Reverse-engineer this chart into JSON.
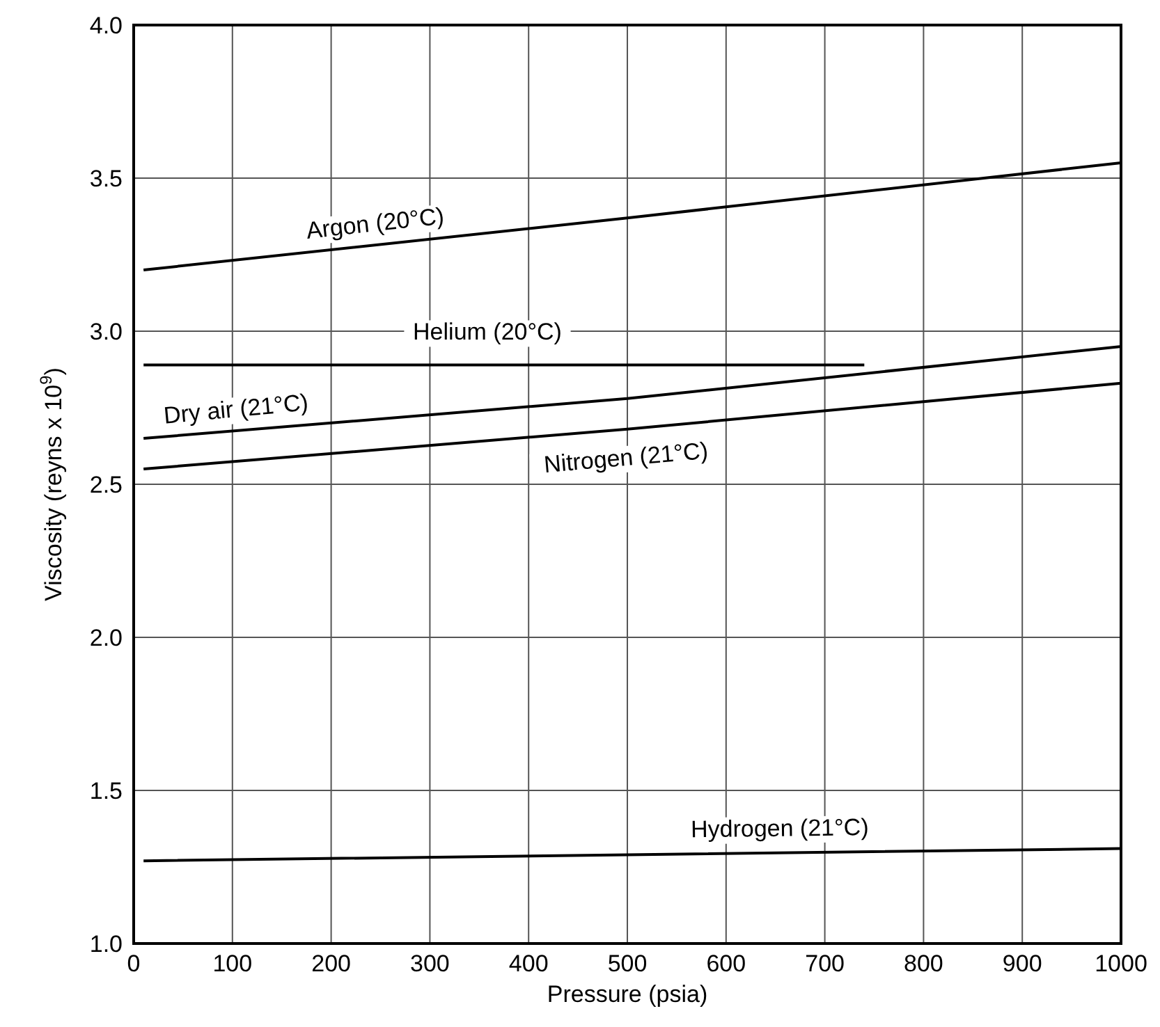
{
  "chart_data": {
    "type": "line",
    "xlabel": "Pressure (psia)",
    "ylabel": "Viscosity (reyns x 10$^{9}$)",
    "xlim": [
      0,
      1000
    ],
    "xticks": [
      0,
      100,
      200,
      300,
      400,
      500,
      600,
      700,
      800,
      900,
      1000
    ],
    "ylim": [
      1.0,
      4.0
    ],
    "yticks": [
      {
        "value": 1.0,
        "label": "1.0"
      },
      1.5,
      {
        "value": 2.0,
        "label": "2.0"
      },
      2.5,
      {
        "value": 3.0,
        "label": "3.0"
      },
      3.5,
      {
        "value": 4.0,
        "label": "4.0"
      }
    ],
    "grid": true,
    "marker": "none",
    "line_style": "solid",
    "series": [
      {
        "name": "Argon (20°C)",
        "color": "#000000",
        "x": [
          10,
          500,
          1000
        ],
        "values": [
          3.2,
          3.37,
          3.55
        ]
      },
      {
        "name": "Helium (20°C)",
        "color": "#000000",
        "x": [
          10,
          740
        ],
        "values": [
          2.89,
          2.89
        ]
      },
      {
        "name": "Dry air (21°C)",
        "color": "#000000",
        "x": [
          10,
          500,
          1000
        ],
        "values": [
          2.65,
          2.78,
          2.95
        ]
      },
      {
        "name": "Nitrogen (21°C)",
        "color": "#000000",
        "x": [
          10,
          500,
          1000
        ],
        "values": [
          2.55,
          2.68,
          2.83
        ]
      },
      {
        "name": "Hydrogen (21°C)",
        "color": "#000000",
        "x": [
          10,
          500,
          1000
        ],
        "values": [
          1.27,
          1.29,
          1.31
        ]
      }
    ]
  }
}
